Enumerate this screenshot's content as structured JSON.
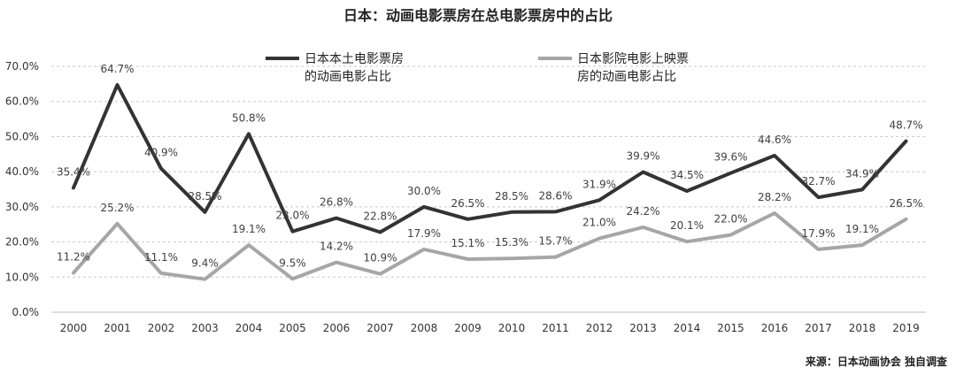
{
  "chart_data": {
    "type": "line",
    "title": "日本：动画电影票房在总电影票房中的占比",
    "source": "来源：日本动画协会 独自调查",
    "x": [
      "2000",
      "2001",
      "2002",
      "2003",
      "2004",
      "2005",
      "2006",
      "2007",
      "2008",
      "2009",
      "2010",
      "2011",
      "2012",
      "2013",
      "2014",
      "2015",
      "2016",
      "2017",
      "2018",
      "2019"
    ],
    "ylim": [
      0,
      70
    ],
    "yticks": [
      "0.0%",
      "10.0%",
      "20.0%",
      "30.0%",
      "40.0%",
      "50.0%",
      "60.0%",
      "70.0%"
    ],
    "grid": true,
    "legend_position": "top-center",
    "series": [
      {
        "name": "日本本土电影票房的动画电影占比",
        "legend_lines": [
          "日本本土电影票房",
          "的动画电影占比"
        ],
        "color": "#333333",
        "values": [
          35.4,
          64.7,
          40.9,
          28.5,
          50.8,
          23.0,
          26.8,
          22.8,
          30.0,
          26.5,
          28.5,
          28.6,
          31.9,
          39.9,
          34.5,
          39.6,
          44.6,
          32.7,
          34.9,
          48.7
        ],
        "labels": [
          "35.4%",
          "64.7%",
          "40.9%",
          "28.5%",
          "50.8%",
          "23.0%",
          "26.8%",
          "22.8%",
          "30.0%",
          "26.5%",
          "28.5%",
          "28.6%",
          "31.9%",
          "39.9%",
          "34.5%",
          "39.6%",
          "44.6%",
          "32.7%",
          "34.9%",
          "48.7%"
        ]
      },
      {
        "name": "日本影院电影上映票房的动画电影占比",
        "legend_lines": [
          "日本影院电影上映票",
          "房的动画电影占比"
        ],
        "color": "#a6a6a6",
        "values": [
          11.2,
          25.2,
          11.1,
          9.4,
          19.1,
          9.5,
          14.2,
          10.9,
          17.9,
          15.1,
          15.3,
          15.7,
          21.0,
          24.2,
          20.1,
          22.0,
          28.2,
          17.9,
          19.1,
          26.5
        ],
        "labels": [
          "11.2%",
          "25.2%",
          "11.1%",
          "9.4%",
          "19.1%",
          "9.5%",
          "14.2%",
          "10.9%",
          "17.9%",
          "15.1%",
          "15.3%",
          "15.7%",
          "21.0%",
          "24.2%",
          "20.1%",
          "22.0%",
          "28.2%",
          "17.9%",
          "19.1%",
          "26.5%"
        ]
      }
    ]
  }
}
